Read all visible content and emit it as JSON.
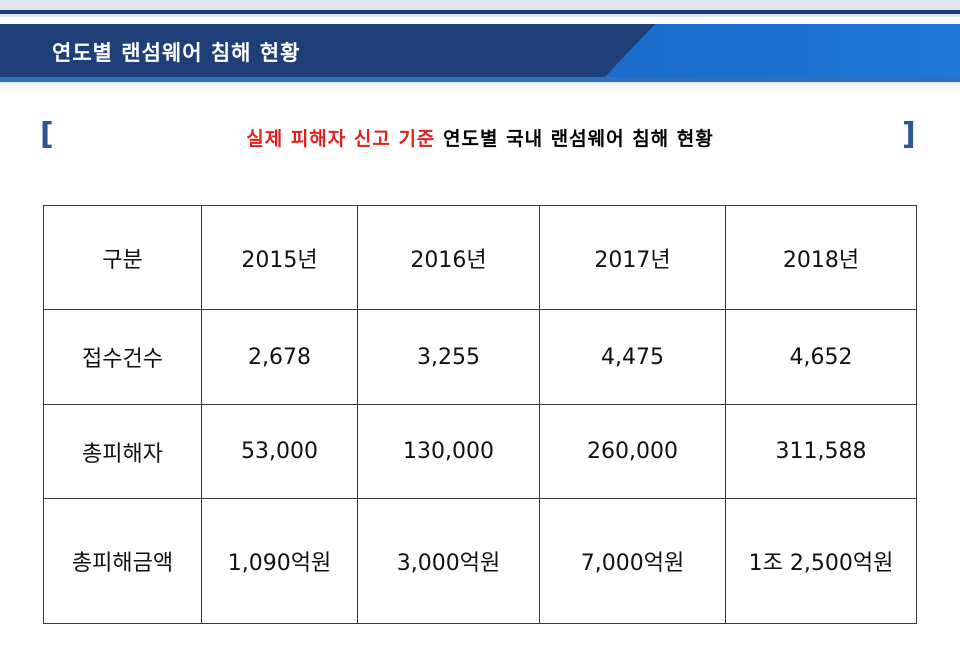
{
  "banner": {
    "title": "연도별 랜섬웨어 침해 현황"
  },
  "subtitle": {
    "bracket_left": "[",
    "highlight": "실제 피해자 신고 기준",
    "rest": " 연도별 국내 랜섬웨어 침해 현황",
    "bracket_right": "]"
  },
  "table": {
    "header": [
      "구분",
      "2015년",
      "2016년",
      "2017년",
      "2018년"
    ],
    "rows": [
      [
        "접수건수",
        "2,678",
        "3,255",
        "4,475",
        "4,652"
      ],
      [
        "총피해자",
        "53,000",
        "130,000",
        "260,000",
        "311,588"
      ],
      [
        "총피해금액",
        "1,090억원",
        "3,000억원",
        "7,000억원",
        "1조 2,500억원"
      ]
    ]
  },
  "colors": {
    "banner": "#1e3f78",
    "banner_accent": "#1d78d8",
    "highlight": "#e0211c",
    "bracket": "#2f5597"
  }
}
